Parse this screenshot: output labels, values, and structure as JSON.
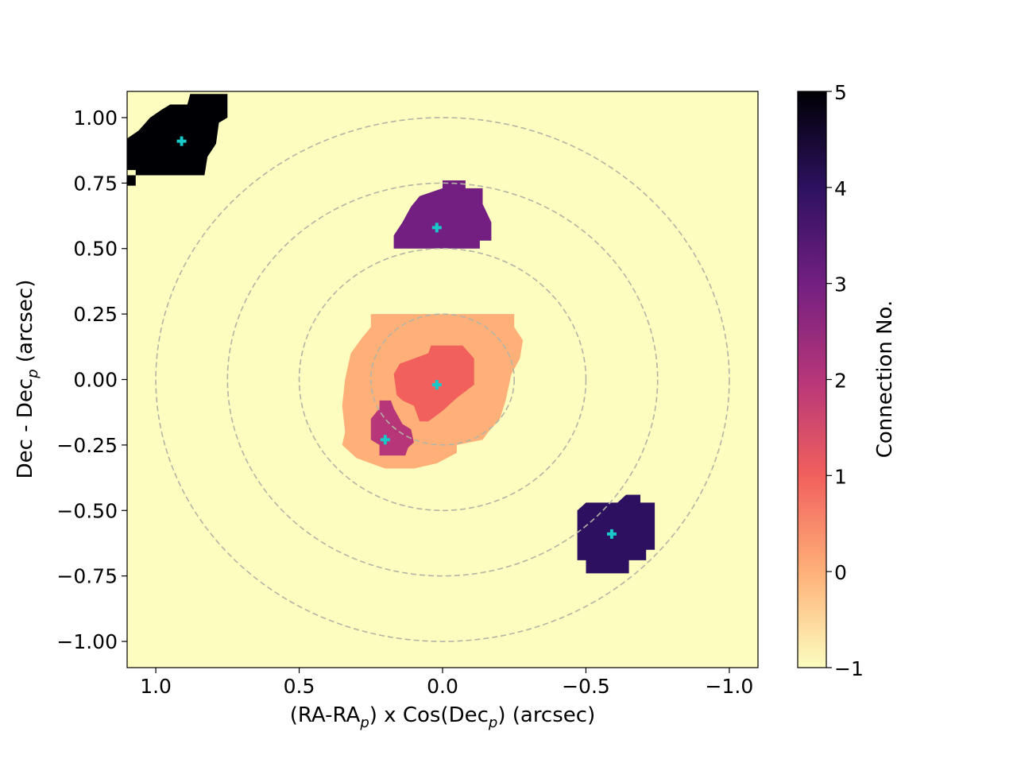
{
  "chart_data": {
    "type": "heatmap",
    "title": "",
    "xlabel": "(RA-RA_p) x Cos(Dec_p) (arcsec)",
    "xlabel_parts": [
      "(RA-RA",
      "p",
      ") x Cos(Dec",
      "p",
      ") (arcsec)"
    ],
    "ylabel": "Dec - Dec_p (arcsec)",
    "ylabel_parts": [
      "Dec - Dec",
      "p",
      " (arcsec)"
    ],
    "xlim": [
      1.1,
      -1.1
    ],
    "ylim": [
      -1.1,
      1.1
    ],
    "x_ticks": [
      1.0,
      0.5,
      0.0,
      -0.5,
      -1.0
    ],
    "x_tick_labels": [
      "1.0",
      "0.5",
      "0.0",
      "−0.5",
      "−1.0"
    ],
    "y_ticks": [
      1.0,
      0.75,
      0.5,
      0.25,
      0.0,
      -0.25,
      -0.5,
      -0.75,
      -1.0
    ],
    "y_tick_labels": [
      "1.00",
      "0.75",
      "0.50",
      "0.25",
      "0.00",
      "−0.25",
      "−0.50",
      "−0.75",
      "−1.00"
    ],
    "colorbar": {
      "label": "Connection No.",
      "range": [
        -1,
        5
      ],
      "ticks": [
        -1,
        0,
        1,
        2,
        3,
        4,
        5
      ],
      "tick_labels": [
        "−1",
        "0",
        "1",
        "2",
        "3",
        "4",
        "5"
      ],
      "colormap": "magma_r",
      "colors": [
        "#fcfdbf",
        "#feb078",
        "#f1605d",
        "#b63679",
        "#721f81",
        "#2d1160",
        "#000004"
      ]
    },
    "background_value": -1,
    "circles": {
      "radii": [
        0.25,
        0.5,
        0.75,
        1.0
      ],
      "center": [
        0,
        0
      ],
      "style": "dashed",
      "color": "#b4b4a6"
    },
    "regions": [
      {
        "value": 0,
        "label": "0",
        "polygon": [
          [
            0.25,
            0.25
          ],
          [
            -0.25,
            0.25
          ],
          [
            -0.25,
            0.2
          ],
          [
            -0.28,
            0.15
          ],
          [
            -0.27,
            0.08
          ],
          [
            -0.24,
            0.02
          ],
          [
            -0.22,
            -0.08
          ],
          [
            -0.2,
            -0.15
          ],
          [
            -0.16,
            -0.2
          ],
          [
            -0.14,
            -0.23
          ],
          [
            -0.05,
            -0.25
          ],
          [
            -0.05,
            -0.28
          ],
          [
            0.02,
            -0.32
          ],
          [
            0.1,
            -0.34
          ],
          [
            0.2,
            -0.34
          ],
          [
            0.3,
            -0.3
          ],
          [
            0.35,
            -0.25
          ],
          [
            0.34,
            -0.2
          ],
          [
            0.35,
            -0.1
          ],
          [
            0.34,
            0.0
          ],
          [
            0.32,
            0.1
          ],
          [
            0.28,
            0.16
          ],
          [
            0.25,
            0.2
          ]
        ]
      },
      {
        "value": 1,
        "label": "1",
        "polygon": [
          [
            0.04,
            0.13
          ],
          [
            -0.07,
            0.13
          ],
          [
            -0.11,
            0.08
          ],
          [
            -0.11,
            -0.02
          ],
          [
            -0.05,
            -0.07
          ],
          [
            0.0,
            -0.12
          ],
          [
            0.05,
            -0.16
          ],
          [
            0.08,
            -0.16
          ],
          [
            0.1,
            -0.1
          ],
          [
            0.14,
            -0.08
          ],
          [
            0.16,
            -0.06
          ],
          [
            0.17,
            0.02
          ],
          [
            0.15,
            0.06
          ],
          [
            0.1,
            0.08
          ],
          [
            0.05,
            0.1
          ]
        ]
      },
      {
        "value": 2,
        "label": "2",
        "polygon": [
          [
            0.22,
            -0.08
          ],
          [
            0.18,
            -0.08
          ],
          [
            0.17,
            -0.11
          ],
          [
            0.14,
            -0.17
          ],
          [
            0.11,
            -0.19
          ],
          [
            0.1,
            -0.24
          ],
          [
            0.12,
            -0.26
          ],
          [
            0.13,
            -0.29
          ],
          [
            0.22,
            -0.29
          ],
          [
            0.22,
            -0.25
          ],
          [
            0.25,
            -0.23
          ],
          [
            0.25,
            -0.15
          ],
          [
            0.22,
            -0.11
          ]
        ]
      },
      {
        "value": 3,
        "label": "3",
        "polygon": [
          [
            0.0,
            0.76
          ],
          [
            -0.08,
            0.76
          ],
          [
            -0.08,
            0.73
          ],
          [
            -0.14,
            0.73
          ],
          [
            -0.14,
            0.67
          ],
          [
            -0.17,
            0.6
          ],
          [
            -0.17,
            0.53
          ],
          [
            -0.13,
            0.53
          ],
          [
            -0.13,
            0.5
          ],
          [
            0.17,
            0.5
          ],
          [
            0.17,
            0.55
          ],
          [
            0.14,
            0.6
          ],
          [
            0.11,
            0.66
          ],
          [
            0.08,
            0.7
          ],
          [
            0.0,
            0.73
          ]
        ]
      },
      {
        "value": 4,
        "label": "4",
        "polygon": [
          [
            -0.64,
            -0.44
          ],
          [
            -0.69,
            -0.44
          ],
          [
            -0.69,
            -0.47
          ],
          [
            -0.74,
            -0.47
          ],
          [
            -0.74,
            -0.65
          ],
          [
            -0.71,
            -0.65
          ],
          [
            -0.71,
            -0.69
          ],
          [
            -0.65,
            -0.69
          ],
          [
            -0.65,
            -0.74
          ],
          [
            -0.5,
            -0.74
          ],
          [
            -0.5,
            -0.69
          ],
          [
            -0.47,
            -0.69
          ],
          [
            -0.47,
            -0.5
          ],
          [
            -0.5,
            -0.47
          ],
          [
            -0.55,
            -0.47
          ],
          [
            -0.61,
            -0.47
          ]
        ]
      },
      {
        "value": 5,
        "label": "5",
        "polygon": [
          [
            0.82,
            1.09
          ],
          [
            0.75,
            1.09
          ],
          [
            0.75,
            1.0
          ],
          [
            0.78,
            0.98
          ],
          [
            0.79,
            0.9
          ],
          [
            0.82,
            0.85
          ],
          [
            0.83,
            0.78
          ],
          [
            1.1,
            0.78
          ],
          [
            1.1,
            0.74
          ],
          [
            1.07,
            0.74
          ],
          [
            1.07,
            0.8
          ],
          [
            1.1,
            0.8
          ],
          [
            1.1,
            0.92
          ],
          [
            1.06,
            0.95
          ],
          [
            1.02,
            1.0
          ],
          [
            0.98,
            1.03
          ],
          [
            0.95,
            1.05
          ],
          [
            0.89,
            1.05
          ],
          [
            0.88,
            1.09
          ]
        ]
      }
    ],
    "centroids": [
      {
        "connection": 0,
        "x": 0.02,
        "y": -0.02
      },
      {
        "connection": 2,
        "x": 0.2,
        "y": -0.23
      },
      {
        "connection": 3,
        "x": 0.02,
        "y": 0.58
      },
      {
        "connection": 4,
        "x": -0.59,
        "y": -0.59
      },
      {
        "connection": 5,
        "x": 0.91,
        "y": 0.91
      }
    ],
    "centroid_marker": "plus",
    "centroid_color": "#19c8c8"
  }
}
